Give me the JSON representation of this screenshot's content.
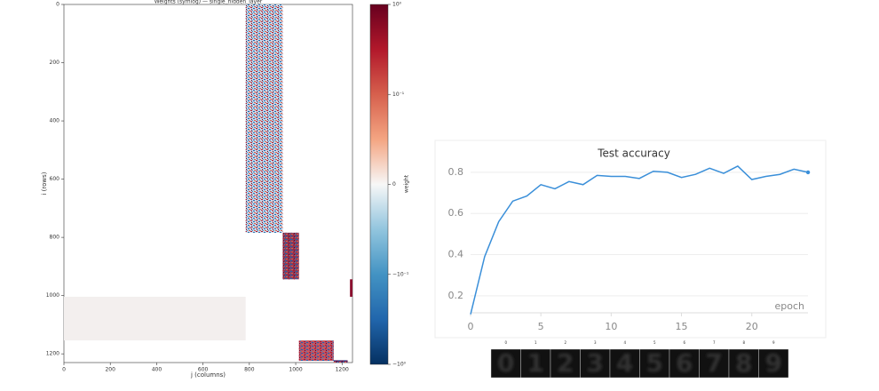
{
  "chart_data": [
    {
      "type": "heatmap",
      "title": "Weights (symlog) — single_hidden_layer",
      "xlabel": "j (columns)",
      "ylabel": "i (rows)",
      "xlim": [
        0,
        1245
      ],
      "xticks": [
        0,
        200,
        400,
        600,
        800,
        1000,
        1200
      ],
      "ylim": [
        1230,
        0
      ],
      "yticks": [
        0,
        200,
        400,
        600,
        800,
        1000,
        1200
      ],
      "blocks": [
        {
          "x": [
            784,
            944
          ],
          "y": [
            0,
            784
          ],
          "color": "#c9d9ea",
          "texture": true
        },
        {
          "x": [
            944,
            1014
          ],
          "y": [
            784,
            944
          ],
          "color": "#8a3a5a",
          "texture": true
        },
        {
          "x": [
            0,
            784
          ],
          "y": [
            1004,
            1154
          ],
          "color": "#f3efee",
          "texture": false
        },
        {
          "x": [
            1014,
            1164
          ],
          "y": [
            1154,
            1224
          ],
          "color": "#b8526a",
          "texture": true
        },
        {
          "x": [
            1164,
            1224
          ],
          "y": [
            1222,
            1230
          ],
          "color": "#5a2a6a",
          "texture": true
        },
        {
          "x": [
            1234,
            1245
          ],
          "y": [
            944,
            1004
          ],
          "color": "#8b1030",
          "texture": false
        }
      ],
      "colorbar": {
        "label": "weight",
        "clim": [
          -1,
          1
        ],
        "linthresh": 0.1,
        "colormap": [
          "#053061",
          "#2166ac",
          "#4393c3",
          "#92c5de",
          "#f7f7f7",
          "#f4a582",
          "#d6604d",
          "#b2182b",
          "#67001f"
        ],
        "ticks": [
          {
            "value": 1,
            "label": "10⁰"
          },
          {
            "value": 0.1,
            "label": "10⁻¹"
          },
          0,
          {
            "value": -0.1,
            "label": "−10⁻¹"
          },
          {
            "value": -1,
            "label": "−10⁰"
          }
        ]
      }
    },
    {
      "type": "line",
      "title": "Test accuracy",
      "xlabel": "epoch",
      "x": [
        0,
        1,
        2,
        3,
        4,
        5,
        6,
        7,
        8,
        9,
        10,
        11,
        12,
        13,
        14,
        15,
        16,
        17,
        18,
        19,
        20,
        21,
        22,
        23,
        24
      ],
      "series": [
        {
          "name": "Test accuracy",
          "color": "#3a8fd9",
          "values": [
            0.11,
            0.39,
            0.56,
            0.66,
            0.685,
            0.74,
            0.72,
            0.755,
            0.74,
            0.785,
            0.78,
            0.78,
            0.77,
            0.805,
            0.8,
            0.775,
            0.79,
            0.82,
            0.795,
            0.83,
            0.765,
            0.78,
            0.79,
            0.815,
            0.8
          ]
        }
      ],
      "xlim": [
        0,
        24.5
      ],
      "xticks": [
        0,
        5,
        10,
        15,
        20
      ],
      "ylim": [
        0.1,
        0.86
      ],
      "yticks": [
        0.2,
        0.4,
        0.6,
        0.8
      ],
      "grid": true
    }
  ],
  "images": {
    "captions": [
      "0",
      "1",
      "2",
      "3",
      "4",
      "5",
      "6",
      "7",
      "8",
      "9"
    ]
  }
}
